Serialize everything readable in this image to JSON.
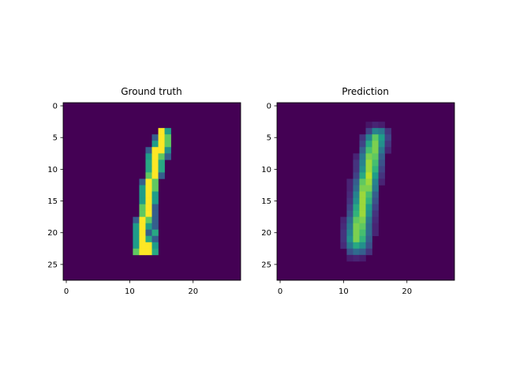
{
  "chart_data": [
    {
      "type": "heatmap",
      "title": "Ground truth",
      "colormap": "viridis",
      "xlim": [
        -0.5,
        27.5
      ],
      "ylim": [
        27.5,
        -0.5
      ],
      "xticks": [
        0,
        10,
        20
      ],
      "yticks": [
        0,
        5,
        10,
        15,
        20,
        25
      ],
      "size": [
        28,
        28
      ],
      "cells": [
        [
          4,
          15,
          1.0
        ],
        [
          4,
          16,
          0.55
        ],
        [
          5,
          14,
          0.3
        ],
        [
          5,
          15,
          1.0
        ],
        [
          5,
          16,
          0.75
        ],
        [
          6,
          14,
          0.55
        ],
        [
          6,
          15,
          1.0
        ],
        [
          6,
          16,
          0.75
        ],
        [
          7,
          13,
          0.3
        ],
        [
          7,
          14,
          1.0
        ],
        [
          7,
          15,
          1.0
        ],
        [
          7,
          16,
          0.5
        ],
        [
          8,
          13,
          0.55
        ],
        [
          8,
          14,
          1.0
        ],
        [
          8,
          15,
          0.75
        ],
        [
          8,
          16,
          0.3
        ],
        [
          9,
          13,
          0.6
        ],
        [
          9,
          14,
          1.0
        ],
        [
          9,
          15,
          0.6
        ],
        [
          10,
          13,
          0.6
        ],
        [
          10,
          14,
          1.0
        ],
        [
          10,
          15,
          0.6
        ],
        [
          11,
          13,
          0.75
        ],
        [
          11,
          14,
          1.0
        ],
        [
          11,
          15,
          0.3
        ],
        [
          12,
          12,
          0.3
        ],
        [
          12,
          13,
          1.0
        ],
        [
          12,
          14,
          0.75
        ],
        [
          13,
          12,
          0.55
        ],
        [
          13,
          13,
          1.0
        ],
        [
          13,
          14,
          0.75
        ],
        [
          14,
          12,
          0.55
        ],
        [
          14,
          13,
          1.0
        ],
        [
          14,
          14,
          0.55
        ],
        [
          15,
          12,
          0.55
        ],
        [
          15,
          13,
          1.0
        ],
        [
          15,
          14,
          0.55
        ],
        [
          16,
          12,
          0.75
        ],
        [
          16,
          13,
          1.0
        ],
        [
          16,
          14,
          0.3
        ],
        [
          17,
          12,
          0.75
        ],
        [
          17,
          13,
          1.0
        ],
        [
          17,
          14,
          0.3
        ],
        [
          18,
          11,
          0.3
        ],
        [
          18,
          12,
          1.0
        ],
        [
          18,
          13,
          0.75
        ],
        [
          18,
          14,
          0.3
        ],
        [
          19,
          11,
          0.55
        ],
        [
          19,
          12,
          1.0
        ],
        [
          19,
          13,
          0.55
        ],
        [
          19,
          14,
          0.3
        ],
        [
          20,
          11,
          0.55
        ],
        [
          20,
          12,
          1.0
        ],
        [
          20,
          13,
          0.3
        ],
        [
          20,
          14,
          0.6
        ],
        [
          21,
          11,
          0.55
        ],
        [
          21,
          12,
          1.0
        ],
        [
          21,
          13,
          0.6
        ],
        [
          21,
          14,
          0.3
        ],
        [
          22,
          11,
          0.55
        ],
        [
          22,
          12,
          1.0
        ],
        [
          22,
          13,
          1.0
        ],
        [
          22,
          14,
          0.55
        ],
        [
          23,
          11,
          0.75
        ],
        [
          23,
          12,
          1.0
        ],
        [
          23,
          13,
          1.0
        ],
        [
          23,
          14,
          0.6
        ]
      ]
    },
    {
      "type": "heatmap",
      "title": "Prediction",
      "colormap": "viridis",
      "xlim": [
        -0.5,
        27.5
      ],
      "ylim": [
        27.5,
        -0.5
      ],
      "xticks": [
        0,
        10,
        20
      ],
      "yticks": [
        0,
        5,
        10,
        15,
        20,
        25
      ],
      "size": [
        28,
        28
      ],
      "cells": [
        [
          3,
          14,
          0.06
        ],
        [
          3,
          15,
          0.1
        ],
        [
          3,
          16,
          0.08
        ],
        [
          4,
          14,
          0.2
        ],
        [
          4,
          15,
          0.45
        ],
        [
          4,
          16,
          0.4
        ],
        [
          4,
          17,
          0.15
        ],
        [
          5,
          13,
          0.15
        ],
        [
          5,
          14,
          0.45
        ],
        [
          5,
          15,
          0.75
        ],
        [
          5,
          16,
          0.55
        ],
        [
          5,
          17,
          0.2
        ],
        [
          6,
          13,
          0.2
        ],
        [
          6,
          14,
          0.6
        ],
        [
          6,
          15,
          0.8
        ],
        [
          6,
          16,
          0.5
        ],
        [
          6,
          17,
          0.15
        ],
        [
          7,
          13,
          0.3
        ],
        [
          7,
          14,
          0.7
        ],
        [
          7,
          15,
          0.8
        ],
        [
          7,
          16,
          0.4
        ],
        [
          7,
          17,
          0.1
        ],
        [
          8,
          12,
          0.1
        ],
        [
          8,
          13,
          0.4
        ],
        [
          8,
          14,
          0.8
        ],
        [
          8,
          15,
          0.75
        ],
        [
          8,
          16,
          0.3
        ],
        [
          9,
          12,
          0.15
        ],
        [
          9,
          13,
          0.45
        ],
        [
          9,
          14,
          0.85
        ],
        [
          9,
          15,
          0.7
        ],
        [
          9,
          16,
          0.25
        ],
        [
          10,
          12,
          0.15
        ],
        [
          10,
          13,
          0.5
        ],
        [
          10,
          14,
          0.85
        ],
        [
          10,
          15,
          0.65
        ],
        [
          10,
          16,
          0.2
        ],
        [
          11,
          12,
          0.2
        ],
        [
          11,
          13,
          0.6
        ],
        [
          11,
          14,
          0.9
        ],
        [
          11,
          15,
          0.55
        ],
        [
          11,
          16,
          0.15
        ],
        [
          12,
          11,
          0.1
        ],
        [
          12,
          12,
          0.3
        ],
        [
          12,
          13,
          0.75
        ],
        [
          12,
          14,
          0.85
        ],
        [
          12,
          15,
          0.45
        ],
        [
          12,
          16,
          0.1
        ],
        [
          13,
          11,
          0.1
        ],
        [
          13,
          12,
          0.35
        ],
        [
          13,
          13,
          0.8
        ],
        [
          13,
          14,
          0.8
        ],
        [
          13,
          15,
          0.4
        ],
        [
          14,
          11,
          0.12
        ],
        [
          14,
          12,
          0.45
        ],
        [
          14,
          13,
          0.85
        ],
        [
          14,
          14,
          0.7
        ],
        [
          14,
          15,
          0.3
        ],
        [
          15,
          11,
          0.15
        ],
        [
          15,
          12,
          0.5
        ],
        [
          15,
          13,
          0.85
        ],
        [
          15,
          14,
          0.65
        ],
        [
          15,
          15,
          0.25
        ],
        [
          16,
          11,
          0.2
        ],
        [
          16,
          12,
          0.6
        ],
        [
          16,
          13,
          0.85
        ],
        [
          16,
          14,
          0.55
        ],
        [
          16,
          15,
          0.2
        ],
        [
          17,
          11,
          0.25
        ],
        [
          17,
          12,
          0.65
        ],
        [
          17,
          13,
          0.85
        ],
        [
          17,
          14,
          0.5
        ],
        [
          17,
          15,
          0.15
        ],
        [
          18,
          10,
          0.1
        ],
        [
          18,
          11,
          0.35
        ],
        [
          18,
          12,
          0.75
        ],
        [
          18,
          13,
          0.8
        ],
        [
          18,
          14,
          0.4
        ],
        [
          18,
          15,
          0.12
        ],
        [
          19,
          10,
          0.12
        ],
        [
          19,
          11,
          0.4
        ],
        [
          19,
          12,
          0.8
        ],
        [
          19,
          13,
          0.75
        ],
        [
          19,
          14,
          0.35
        ],
        [
          19,
          15,
          0.1
        ],
        [
          20,
          10,
          0.15
        ],
        [
          20,
          11,
          0.45
        ],
        [
          20,
          12,
          0.8
        ],
        [
          20,
          13,
          0.7
        ],
        [
          20,
          14,
          0.35
        ],
        [
          20,
          15,
          0.1
        ],
        [
          21,
          10,
          0.15
        ],
        [
          21,
          11,
          0.5
        ],
        [
          21,
          12,
          0.8
        ],
        [
          21,
          13,
          0.65
        ],
        [
          21,
          14,
          0.3
        ],
        [
          22,
          10,
          0.12
        ],
        [
          22,
          11,
          0.4
        ],
        [
          22,
          12,
          0.6
        ],
        [
          22,
          13,
          0.5
        ],
        [
          22,
          14,
          0.25
        ],
        [
          23,
          11,
          0.25
        ],
        [
          23,
          12,
          0.35
        ],
        [
          23,
          13,
          0.3
        ],
        [
          23,
          14,
          0.15
        ],
        [
          24,
          11,
          0.08
        ],
        [
          24,
          12,
          0.1
        ],
        [
          24,
          13,
          0.08
        ]
      ]
    }
  ]
}
